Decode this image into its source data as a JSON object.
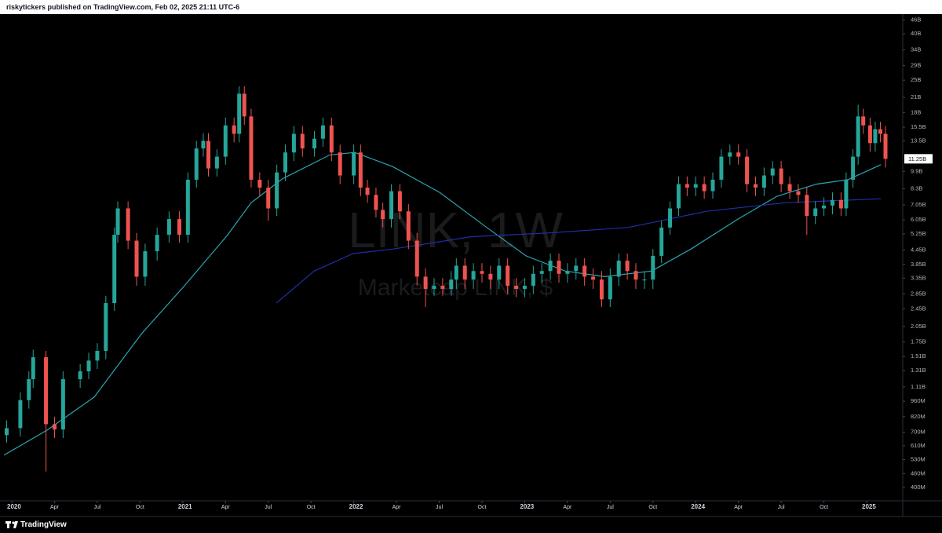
{
  "header": {
    "text": "riskytickers published on TradingView.com, Feb 02, 2025 21:11 UTC-6"
  },
  "footer": {
    "brand": "TradingView"
  },
  "chart_data": {
    "type": "candlestick",
    "watermark": "LINK, 1W",
    "subtitle": "Marketcap LINK, $",
    "log_scale": true,
    "up_color": "#26a69a",
    "down_color": "#ef5350",
    "xlim": [
      2019.954,
      2025.211
    ],
    "ylim": [
      349000000.0,
      48900000000.0
    ],
    "x": [
      2019.97,
      2020.05,
      2020.1,
      2020.125,
      2020.2,
      2020.25,
      2020.3,
      2020.4,
      2020.45,
      2020.5,
      2020.55,
      2020.6,
      2020.62,
      2020.68,
      2020.73,
      2020.78,
      2020.85,
      2020.92,
      2020.98,
      2021.03,
      2021.08,
      2021.12,
      2021.15,
      2021.2,
      2021.25,
      2021.3,
      2021.33,
      2021.36,
      2021.4,
      2021.45,
      2021.5,
      2021.55,
      2021.6,
      2021.65,
      2021.7,
      2021.77,
      2021.82,
      2021.87,
      2021.92,
      2022.0,
      2022.04,
      2022.08,
      2022.13,
      2022.17,
      2022.22,
      2022.27,
      2022.32,
      2022.37,
      2022.42,
      2022.47,
      2022.52,
      2022.57,
      2022.6,
      2022.65,
      2022.7,
      2022.75,
      2022.8,
      2022.85,
      2022.9,
      2022.95,
      2023.0,
      2023.05,
      2023.1,
      2023.15,
      2023.2,
      2023.25,
      2023.3,
      2023.35,
      2023.4,
      2023.45,
      2023.5,
      2023.55,
      2023.6,
      2023.65,
      2023.7,
      2023.75,
      2023.8,
      2023.85,
      2023.9,
      2023.95,
      2024.0,
      2024.05,
      2024.1,
      2024.15,
      2024.2,
      2024.25,
      2024.3,
      2024.35,
      2024.4,
      2024.45,
      2024.5,
      2024.55,
      2024.6,
      2024.65,
      2024.7,
      2024.75,
      2024.8,
      2024.85,
      2024.88,
      2024.92,
      2024.95,
      2024.98,
      2025.02,
      2025.05,
      2025.08,
      2025.11
    ],
    "open": [
      680000000.0,
      730000000.0,
      970000000.0,
      1200000000.0,
      1500000000.0,
      760000000.0,
      720000000.0,
      1200000000.0,
      1300000000.0,
      1450000000.0,
      1600000000.0,
      2600000000.0,
      5200000000.0,
      6800000000.0,
      4900000000.0,
      3400000000.0,
      4400000000.0,
      5200000000.0,
      6100000000.0,
      5200000000.0,
      9100000000.0,
      12500000000.0,
      13500000000.0,
      10200000000.0,
      11500000000.0,
      15800000000.0,
      14500000000.0,
      21800000000.0,
      17300000000.0,
      9100000000.0,
      8400000000.0,
      6800000000.0,
      9800000000.0,
      12000000000.0,
      14500000000.0,
      12500000000.0,
      13800000000.0,
      15800000000.0,
      12000000000.0,
      9500000000.0,
      12000000000.0,
      8400000000.0,
      7800000000.0,
      6700000000.0,
      6100000000.0,
      8100000000.0,
      6600000000.0,
      4900000000.0,
      3400000000.0,
      3000000000.0,
      3100000000.0,
      3000000000.0,
      3300000000.0,
      3800000000.0,
      3300000000.0,
      3600000000.0,
      3500000000.0,
      3300000000.0,
      3800000000.0,
      3100000000.0,
      3000000000.0,
      3100000000.0,
      3500000000.0,
      3600000000.0,
      4000000000.0,
      3500000000.0,
      3600000000.0,
      3800000000.0,
      3400000000.0,
      3300000000.0,
      2700000000.0,
      3400000000.0,
      4000000000.0,
      3600000000.0,
      3300000000.0,
      3300000000.0,
      4200000000.0,
      5600000000.0,
      6800000000.0,
      8700000000.0,
      8400000000.0,
      8700000000.0,
      8100000000.0,
      9100000000.0,
      11500000000.0,
      12000000000.0,
      11500000000.0,
      8700000000.0,
      8400000000.0,
      9500000000.0,
      10200000000.0,
      8700000000.0,
      8100000000.0,
      7800000000.0,
      6300000000.0,
      6800000000.0,
      7000000000.0,
      7400000000.0,
      6800000000.0,
      9100000000.0,
      11500000000.0,
      17300000000.0,
      15800000000.0,
      13200000000.0,
      15200000000.0,
      14500000000.0
    ],
    "high": [
      790000000.0,
      1050000000.0,
      1300000000.0,
      1620000000.0,
      1600000000.0,
      820000000.0,
      1300000000.0,
      1400000000.0,
      1570000000.0,
      1730000000.0,
      2800000000.0,
      5600000000.0,
      7300000000.0,
      7300000000.0,
      5300000000.0,
      4750000000.0,
      5600000000.0,
      6600000000.0,
      6600000000.0,
      9800000000.0,
      13500000000.0,
      14600000000.0,
      14600000000.0,
      12400000000.0,
      17100000000.0,
      17100000000.0,
      23500000000.0,
      23500000000.0,
      18700000000.0,
      9800000000.0,
      9100000000.0,
      10600000000.0,
      13000000000.0,
      15700000000.0,
      15700000000.0,
      14900000000.0,
      17100000000.0,
      17100000000.0,
      13000000000.0,
      13000000000.0,
      13000000000.0,
      9100000000.0,
      8400000000.0,
      7200000000.0,
      8700000000.0,
      8700000000.0,
      7100000000.0,
      5300000000.0,
      3700000000.0,
      3350000000.0,
      3350000000.0,
      3600000000.0,
      4100000000.0,
      4100000000.0,
      3900000000.0,
      3900000000.0,
      3800000000.0,
      4100000000.0,
      4100000000.0,
      3350000000.0,
      3350000000.0,
      3800000000.0,
      3900000000.0,
      4300000000.0,
      4300000000.0,
      3900000000.0,
      4100000000.0,
      4100000000.0,
      3700000000.0,
      3600000000.0,
      3700000000.0,
      4300000000.0,
      4300000000.0,
      3900000000.0,
      3600000000.0,
      4500000000.0,
      6000000000.0,
      7300000000.0,
      9400000000.0,
      9400000000.0,
      9400000000.0,
      9400000000.0,
      9800000000.0,
      12400000000.0,
      13000000000.0,
      13000000000.0,
      12400000000.0,
      9400000000.0,
      10300000000.0,
      11000000000.0,
      11000000000.0,
      9400000000.0,
      8700000000.0,
      8400000000.0,
      7300000000.0,
      7600000000.0,
      8000000000.0,
      8000000000.0,
      9800000000.0,
      12400000000.0,
      19500000000.0,
      18700000000.0,
      17100000000.0,
      16400000000.0,
      16400000000.0,
      15700000000.0
    ],
    "low": [
      630000000.0,
      670000000.0,
      890000000.0,
      1100000000.0,
      470000000.0,
      660000000.0,
      660000000.0,
      1100000000.0,
      1200000000.0,
      1330000000.0,
      1470000000.0,
      2400000000.0,
      4800000000.0,
      4500000000.0,
      3100000000.0,
      3100000000.0,
      4000000000.0,
      4800000000.0,
      4800000000.0,
      4800000000.0,
      8400000000.0,
      11500000000.0,
      9400000000.0,
      9400000000.0,
      10600000000.0,
      13300000000.0,
      13300000000.0,
      15900000000.0,
      8400000000.0,
      7700000000.0,
      6000000000.0,
      6300000000.0,
      9000000000.0,
      11000000000.0,
      11500000000.0,
      11500000000.0,
      12700000000.0,
      11000000000.0,
      8700000000.0,
      8700000000.0,
      7700000000.0,
      7200000000.0,
      6200000000.0,
      5600000000.0,
      5600000000.0,
      6100000000.0,
      4500000000.0,
      3100000000.0,
      2500000000.0,
      2800000000.0,
      2800000000.0,
      2800000000.0,
      3000000000.0,
      3000000000.0,
      3000000000.0,
      3200000000.0,
      3000000000.0,
      3000000000.0,
      2850000000.0,
      2760000000.0,
      2760000000.0,
      2850000000.0,
      3200000000.0,
      3300000000.0,
      3200000000.0,
      3200000000.0,
      3300000000.0,
      3100000000.0,
      3000000000.0,
      2500000000.0,
      2500000000.0,
      3100000000.0,
      3300000000.0,
      3000000000.0,
      3000000000.0,
      3000000000.0,
      3900000000.0,
      5200000000.0,
      6300000000.0,
      7700000000.0,
      7700000000.0,
      7500000000.0,
      7500000000.0,
      8400000000.0,
      10600000000.0,
      10600000000.0,
      8000000000.0,
      7700000000.0,
      7700000000.0,
      8700000000.0,
      8000000000.0,
      7500000000.0,
      7200000000.0,
      5200000000.0,
      5800000000.0,
      6300000000.0,
      6400000000.0,
      6300000000.0,
      6300000000.0,
      8400000000.0,
      10600000000.0,
      14500000000.0,
      12100000000.0,
      12100000000.0,
      13300000000.0,
      10300000000.0
    ],
    "close": [
      730000000.0,
      970000000.0,
      1200000000.0,
      1500000000.0,
      760000000.0,
      720000000.0,
      1200000000.0,
      1300000000.0,
      1450000000.0,
      1600000000.0,
      2600000000.0,
      5200000000.0,
      6800000000.0,
      4900000000.0,
      3400000000.0,
      4400000000.0,
      5200000000.0,
      6100000000.0,
      5200000000.0,
      9100000000.0,
      12500000000.0,
      13500000000.0,
      10200000000.0,
      11500000000.0,
      15800000000.0,
      14500000000.0,
      21800000000.0,
      17300000000.0,
      9100000000.0,
      8400000000.0,
      6800000000.0,
      9800000000.0,
      12000000000.0,
      14500000000.0,
      12500000000.0,
      13800000000.0,
      15800000000.0,
      12000000000.0,
      9500000000.0,
      12000000000.0,
      8400000000.0,
      7800000000.0,
      6700000000.0,
      6100000000.0,
      8100000000.0,
      6600000000.0,
      4900000000.0,
      3400000000.0,
      3000000000.0,
      3100000000.0,
      3000000000.0,
      3300000000.0,
      3800000000.0,
      3300000000.0,
      3600000000.0,
      3500000000.0,
      3300000000.0,
      3800000000.0,
      3100000000.0,
      3000000000.0,
      3100000000.0,
      3500000000.0,
      3600000000.0,
      4000000000.0,
      3500000000.0,
      3600000000.0,
      3800000000.0,
      3400000000.0,
      3300000000.0,
      2700000000.0,
      3400000000.0,
      4000000000.0,
      3600000000.0,
      3300000000.0,
      3300000000.0,
      4200000000.0,
      5600000000.0,
      6800000000.0,
      8700000000.0,
      8400000000.0,
      8700000000.0,
      8100000000.0,
      9100000000.0,
      11500000000.0,
      12000000000.0,
      11500000000.0,
      8700000000.0,
      8400000000.0,
      9500000000.0,
      10200000000.0,
      8700000000.0,
      8100000000.0,
      7800000000.0,
      6300000000.0,
      6800000000.0,
      7000000000.0,
      7400000000.0,
      6800000000.0,
      9100000000.0,
      11500000000.0,
      17300000000.0,
      15800000000.0,
      13200000000.0,
      15200000000.0,
      14500000000.0,
      11250000000.0
    ],
    "series": [
      {
        "color": "#2aa5b0",
        "x": [
          2019.954,
          2020.207,
          2020.482,
          2020.758,
          2021.01,
          2021.263,
          2021.4,
          2021.584,
          2021.86,
          2022.006,
          2022.227,
          2022.502,
          2022.778,
          2023.007,
          2023.237,
          2023.466,
          2023.742,
          2023.972,
          2024.247,
          2024.477,
          2024.706,
          2024.89,
          2025.083
        ],
        "values": [
          555000000.0,
          716000000.0,
          1000000000.0,
          1900000000.0,
          3100000000.0,
          5200000000.0,
          7200000000.0,
          9200000000.0,
          11700000000.0,
          12000000000.0,
          10400000000.0,
          8000000000.0,
          5600000000.0,
          4200000000.0,
          3600000000.0,
          3400000000.0,
          3600000000.0,
          4500000000.0,
          6100000000.0,
          7700000000.0,
          8700000000.0,
          9100000000.0,
          10600000000.0
        ]
      },
      {
        "color": "#1f2fa8",
        "x": [
          2021.547,
          2021.768,
          2021.997,
          2022.227,
          2022.686,
          2023.145,
          2023.604,
          2024.063,
          2024.522,
          2025.083
        ],
        "values": [
          2600000000.0,
          3600000000.0,
          4300000000.0,
          4500000000.0,
          5100000000.0,
          5300000000.0,
          5600000000.0,
          6600000000.0,
          7200000000.0,
          7500000000.0
        ]
      }
    ],
    "price_tag": {
      "value": 11250000000.0,
      "label": "11.25B"
    },
    "yticks": [
      {
        "value": 46000000000.0,
        "label": "46B"
      },
      {
        "value": 40000000000.0,
        "label": "40B"
      },
      {
        "value": 34000000000.0,
        "label": "34B"
      },
      {
        "value": 29000000000.0,
        "label": "29B"
      },
      {
        "value": 25000000000.0,
        "label": "25B"
      },
      {
        "value": 21000000000.0,
        "label": "21B"
      },
      {
        "value": 18000000000.0,
        "label": "18B"
      },
      {
        "value": 15500000000.0,
        "label": "15.5B"
      },
      {
        "value": 13500000000.0,
        "label": "13.5B"
      },
      {
        "value": 9900000000.0,
        "label": "9.9B"
      },
      {
        "value": 8300000000.0,
        "label": "8.3B"
      },
      {
        "value": 7050000000.0,
        "label": "7.05B"
      },
      {
        "value": 6050000000.0,
        "label": "6.05B"
      },
      {
        "value": 5250000000.0,
        "label": "5.25B"
      },
      {
        "value": 4450000000.0,
        "label": "4.45B"
      },
      {
        "value": 3850000000.0,
        "label": "3.85B"
      },
      {
        "value": 3350000000.0,
        "label": "3.35B"
      },
      {
        "value": 2850000000.0,
        "label": "2.85B"
      },
      {
        "value": 2450000000.0,
        "label": "2.45B"
      },
      {
        "value": 2050000000.0,
        "label": "2.05B"
      },
      {
        "value": 1750000000.0,
        "label": "1.75B"
      },
      {
        "value": 1510000000.0,
        "label": "1.51B"
      },
      {
        "value": 1310000000.0,
        "label": "1.31B"
      },
      {
        "value": 1110000000.0,
        "label": "1.11B"
      },
      {
        "value": 960000000.0,
        "label": "960M"
      },
      {
        "value": 820000000.0,
        "label": "820M"
      },
      {
        "value": 700000000.0,
        "label": "700M"
      },
      {
        "value": 610000000.0,
        "label": "610M"
      },
      {
        "value": 530000000.0,
        "label": "530M"
      },
      {
        "value": 460000000.0,
        "label": "460M"
      },
      {
        "value": 400000000.0,
        "label": "400M"
      }
    ],
    "xticks": [
      {
        "value": 2020,
        "label": "2020"
      },
      {
        "value": 2020.25,
        "label": "Apr"
      },
      {
        "value": 2020.5,
        "label": "Jul"
      },
      {
        "value": 2020.75,
        "label": "Oct"
      },
      {
        "value": 2021,
        "label": "2021"
      },
      {
        "value": 2021.25,
        "label": "Apr"
      },
      {
        "value": 2021.5,
        "label": "Jul"
      },
      {
        "value": 2021.75,
        "label": "Oct"
      },
      {
        "value": 2022,
        "label": "2022"
      },
      {
        "value": 2022.25,
        "label": "Apr"
      },
      {
        "value": 2022.5,
        "label": "Jul"
      },
      {
        "value": 2022.75,
        "label": "Oct"
      },
      {
        "value": 2023,
        "label": "2023"
      },
      {
        "value": 2023.25,
        "label": "Apr"
      },
      {
        "value": 2023.5,
        "label": "Jul"
      },
      {
        "value": 2023.75,
        "label": "Oct"
      },
      {
        "value": 2024,
        "label": "2024"
      },
      {
        "value": 2024.25,
        "label": "Apr"
      },
      {
        "value": 2024.5,
        "label": "Jul"
      },
      {
        "value": 2024.75,
        "label": "Oct"
      },
      {
        "value": 2025,
        "label": "2025"
      }
    ]
  }
}
